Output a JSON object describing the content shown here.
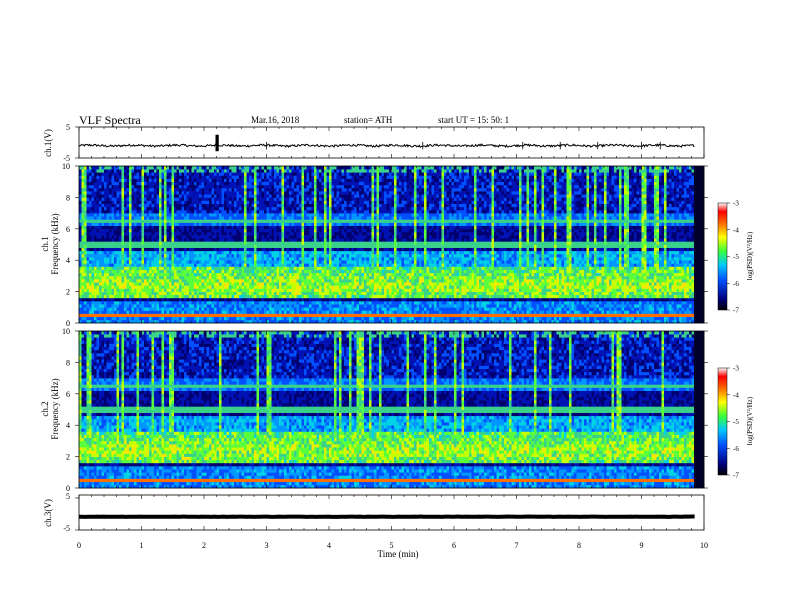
{
  "header": {
    "title": "VLF  Spectra",
    "date": "Mar.16, 2018",
    "station": "station= ATH",
    "start": "start  UT  =   15: 50: 1"
  },
  "chart_data": [
    {
      "type": "line",
      "name": "ch1-waveform",
      "ylabel": "ch.1(V)",
      "ylim": [
        -5,
        5
      ],
      "y_ticks": [
        "5",
        "-5"
      ],
      "xlim": [
        0,
        10
      ],
      "baseline": -1,
      "amplitude": 0.35
    },
    {
      "type": "heatmap",
      "name": "ch1-spectrogram",
      "ylabel": "ch.1\nFrequency  (kHz)",
      "ylim": [
        0,
        10
      ],
      "y_ticks": [
        "0",
        "2",
        "4",
        "6",
        "8",
        "10"
      ],
      "xlim": [
        0,
        10
      ],
      "colorbar": {
        "label": "log(PSD)(V²/Hz)",
        "range": [
          -7,
          -3
        ],
        "ticks": [
          "-3",
          "-4",
          "-5",
          "-6",
          "-7"
        ]
      }
    },
    {
      "type": "heatmap",
      "name": "ch2-spectrogram",
      "ylabel": "ch.2\nFrequency  (kHz)",
      "ylim": [
        0,
        10
      ],
      "y_ticks": [
        "0",
        "2",
        "4",
        "6",
        "8",
        "10"
      ],
      "xlim": [
        0,
        10
      ],
      "colorbar": {
        "label": "log(PSD)(V²/Hz)",
        "range": [
          -7,
          -3
        ],
        "ticks": [
          "-3",
          "-4",
          "-5",
          "-6",
          "-7"
        ]
      }
    },
    {
      "type": "line",
      "name": "ch3-waveform",
      "ylabel": "ch.3(V)",
      "ylim": [
        -5,
        5
      ],
      "y_ticks": [
        "5",
        "-5"
      ],
      "xlim": [
        0,
        10
      ],
      "baseline": -1.2,
      "amplitude": 0.1
    }
  ],
  "x_axis": {
    "label": "Time  (min)",
    "ticks": [
      "0",
      "1",
      "2",
      "3",
      "4",
      "5",
      "6",
      "7",
      "8",
      "9",
      "10"
    ]
  },
  "colors": {
    "background": "#ffffff",
    "frame": "#000000",
    "spectrogram_floor": "#00006e",
    "noise_band": "#3ad28a"
  }
}
